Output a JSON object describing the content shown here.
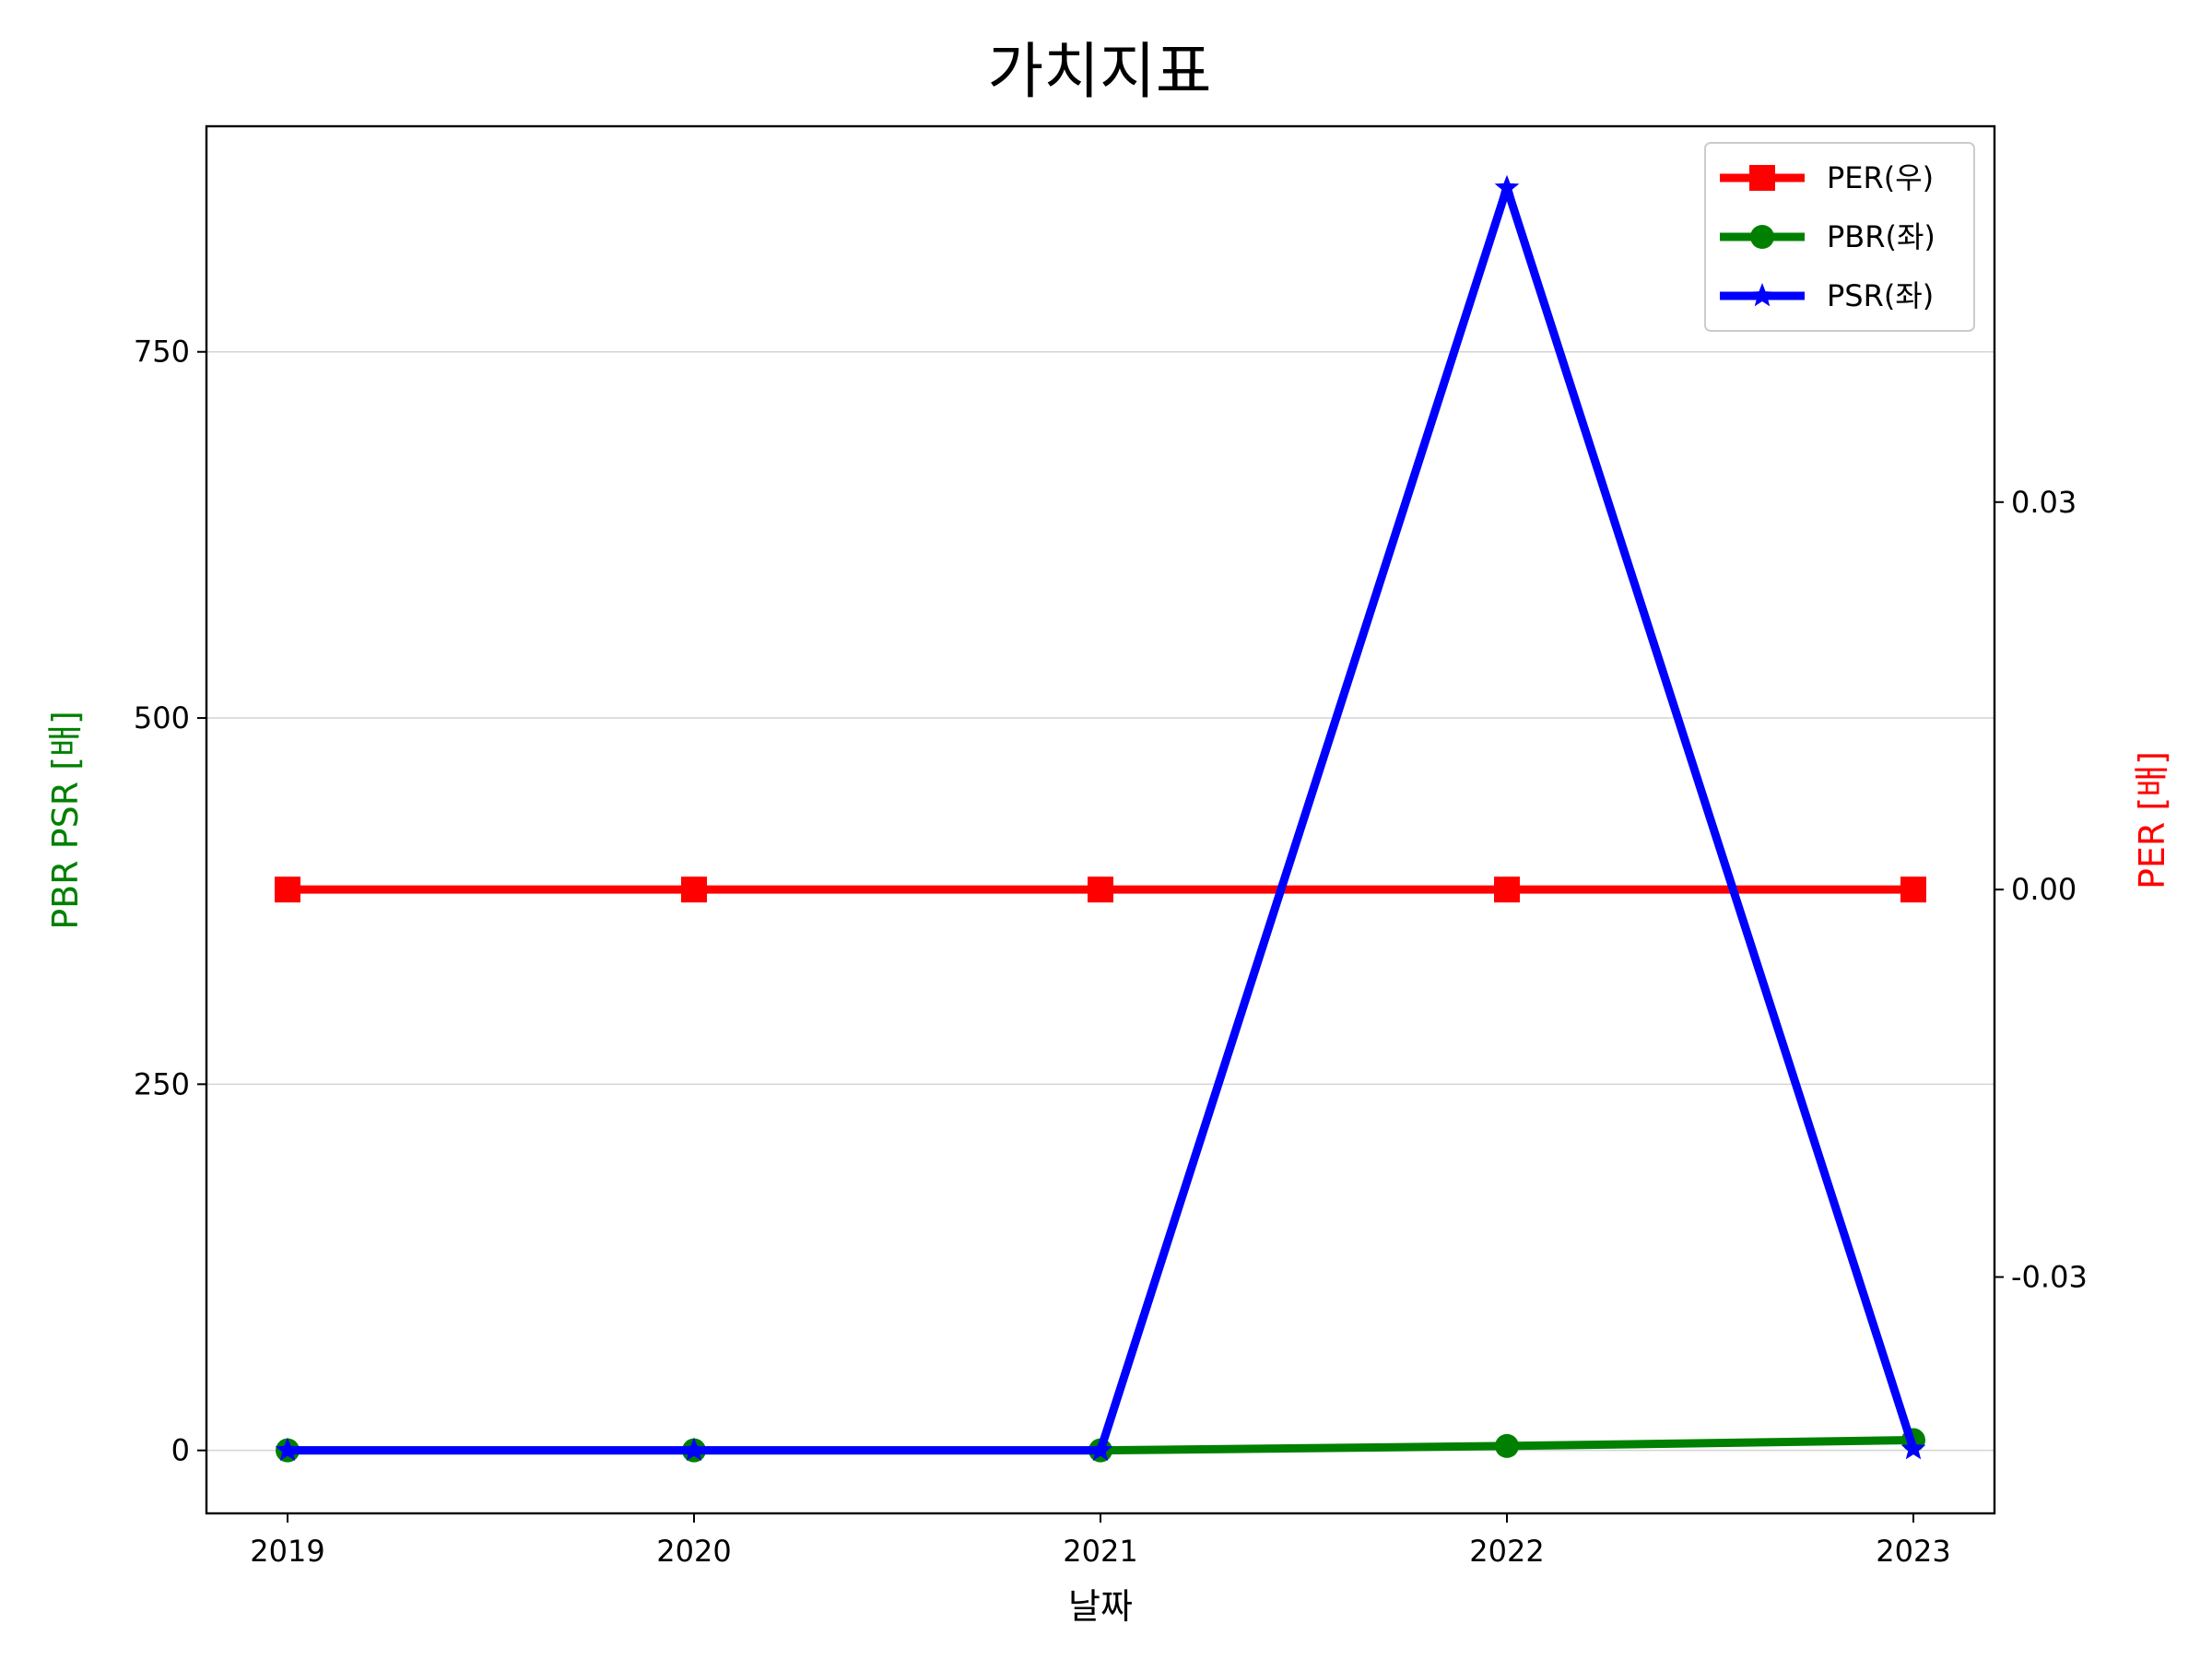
{
  "chart_data": {
    "type": "line",
    "title": "가치지표",
    "xlabel": "날짜",
    "ylabel_left": "PBR PSR [배]",
    "ylabel_right": "PER [배]",
    "categories": [
      "2019",
      "2020",
      "2021",
      "2022",
      "2023"
    ],
    "left_axis": {
      "ylim": [
        -43,
        904
      ],
      "ticks": [
        0,
        250,
        500,
        750
      ],
      "tick_labels": [
        "0",
        "250",
        "500",
        "750"
      ],
      "label_color": "#008000"
    },
    "right_axis": {
      "ylim": [
        -0.0483,
        0.0591
      ],
      "ticks": [
        -0.03,
        0.0,
        0.03
      ],
      "tick_labels": [
        "-0.03",
        "0.00",
        "0.03"
      ],
      "label_color": "#ff0000"
    },
    "series": [
      {
        "name": "PER(우)",
        "axis": "right",
        "color": "#ff0000",
        "marker": "square",
        "values": [
          0,
          0,
          0,
          0,
          0
        ]
      },
      {
        "name": "PBR(좌)",
        "axis": "left",
        "color": "#008000",
        "marker": "circle",
        "values": [
          0,
          0,
          0,
          3,
          7
        ]
      },
      {
        "name": "PSR(좌)",
        "axis": "left",
        "color": "#0000ff",
        "marker": "star",
        "values": [
          0,
          0,
          0,
          862,
          1
        ]
      }
    ],
    "grid": "horizontal",
    "legend_position": "top-right"
  }
}
